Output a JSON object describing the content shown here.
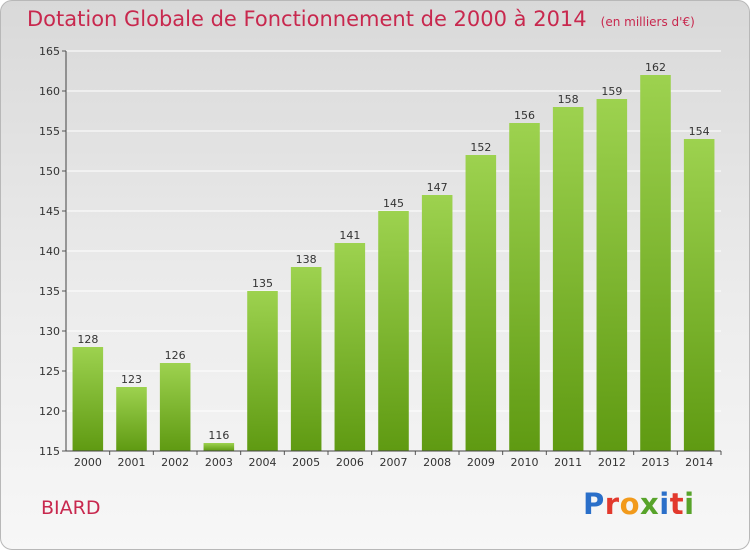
{
  "header": {
    "title": "Dotation Globale de Fonctionnement de 2000 à 2014",
    "unit": "(en milliers d'€)"
  },
  "footer": {
    "place": "BIARD",
    "logo": "Proxiti",
    "logo_colors": [
      "#2a6fc9",
      "#e2392d",
      "#f29a1b",
      "#57a32a",
      "#2a6fc9",
      "#e2392d",
      "#57a32a"
    ]
  },
  "colors": {
    "bar_light": "#9dd24f",
    "bar_dark": "#5f9a12",
    "grid": "#ffffff",
    "accent": "#c8284e"
  },
  "chart_data": {
    "type": "bar",
    "title": "Dotation Globale de Fonctionnement de 2000 à 2014",
    "categories": [
      "2000",
      "2001",
      "2002",
      "2003",
      "2004",
      "2005",
      "2006",
      "2007",
      "2008",
      "2009",
      "2010",
      "2011",
      "2012",
      "2013",
      "2014"
    ],
    "values": [
      128,
      123,
      126,
      116,
      135,
      138,
      141,
      145,
      147,
      152,
      156,
      158,
      159,
      162,
      154
    ],
    "ylim": [
      115,
      165
    ],
    "yticks": [
      115,
      120,
      125,
      130,
      135,
      140,
      145,
      150,
      155,
      160,
      165
    ],
    "grid": true
  }
}
